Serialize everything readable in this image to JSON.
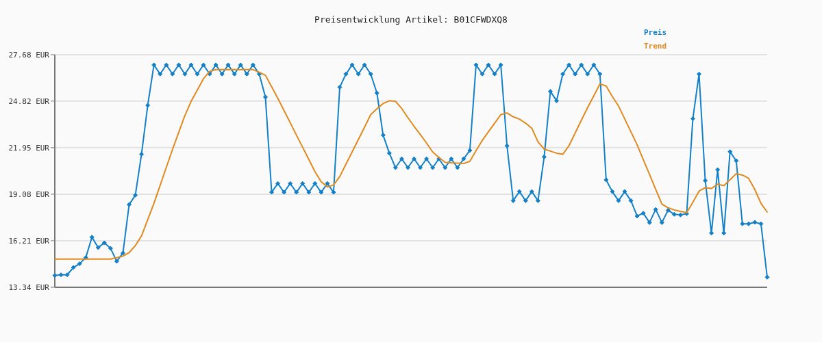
{
  "chart_data": {
    "type": "line",
    "title": "Preisentwicklung Artikel: B01CFWDXQ8",
    "categories": [
      null,
      null,
      null,
      null,
      null,
      null,
      null,
      null,
      null,
      null,
      null,
      null,
      null,
      null,
      null,
      null,
      null,
      null,
      null,
      null,
      null,
      null,
      null,
      null,
      null,
      null,
      null,
      null,
      null,
      null,
      null,
      null,
      null,
      null,
      null,
      null,
      null,
      null,
      null,
      null,
      null,
      null,
      null,
      null,
      null,
      null,
      null,
      null,
      null,
      null,
      null,
      null,
      null,
      null,
      null,
      null,
      null,
      null,
      null,
      null,
      null,
      null,
      null,
      null,
      null,
      null,
      null,
      null,
      null,
      null,
      null,
      null,
      null,
      null,
      null,
      null,
      null,
      null,
      null,
      null,
      null,
      null,
      null,
      null,
      null,
      null,
      null,
      null,
      null,
      null,
      null,
      null,
      null,
      null,
      null,
      null,
      null,
      null,
      null,
      null,
      null,
      null,
      null,
      null,
      null,
      null,
      null,
      null,
      null,
      null,
      null,
      null,
      null,
      null,
      null,
      null
    ],
    "ylim": [
      13.34,
      27.68
    ],
    "yticks": [
      {
        "value": 13.34,
        "label": "13.34 EUR"
      },
      {
        "value": 16.21,
        "label": "16.21 EUR"
      },
      {
        "value": 19.08,
        "label": "19.08 EUR"
      },
      {
        "value": 21.95,
        "label": "21.95 EUR"
      },
      {
        "value": 24.82,
        "label": "24.82 EUR"
      },
      {
        "value": 27.68,
        "label": "27.68 EUR"
      }
    ],
    "grid": "y",
    "series": [
      {
        "name": "Preis",
        "color": "#1380c8",
        "marker": "diamond",
        "values": [
          14.07,
          14.11,
          14.11,
          14.56,
          14.79,
          15.17,
          16.43,
          15.79,
          16.08,
          15.74,
          14.94,
          15.45,
          18.44,
          19.02,
          21.55,
          24.56,
          27.05,
          26.49,
          27.05,
          26.49,
          27.05,
          26.49,
          27.05,
          26.49,
          27.05,
          26.49,
          27.05,
          26.49,
          27.05,
          26.49,
          27.05,
          26.49,
          27.05,
          26.49,
          25.07,
          19.2,
          19.74,
          19.2,
          19.74,
          19.2,
          19.74,
          19.2,
          19.74,
          19.2,
          19.74,
          19.2,
          25.68,
          26.49,
          27.05,
          26.49,
          27.05,
          26.49,
          25.32,
          22.72,
          21.61,
          20.72,
          21.26,
          20.72,
          21.26,
          20.72,
          21.26,
          20.72,
          21.26,
          20.72,
          21.26,
          20.72,
          21.26,
          21.78,
          27.05,
          26.49,
          27.05,
          26.49,
          27.05,
          22.06,
          18.68,
          19.24,
          18.68,
          19.24,
          18.68,
          21.38,
          25.42,
          24.84,
          26.49,
          27.05,
          26.49,
          27.05,
          26.49,
          27.05,
          26.49,
          19.96,
          19.24,
          18.68,
          19.24,
          18.68,
          17.73,
          17.91,
          17.33,
          18.14,
          17.33,
          18.09,
          17.84,
          17.8,
          17.88,
          23.74,
          26.49,
          19.92,
          16.68,
          20.59,
          16.68,
          21.7,
          21.14,
          17.25,
          17.25,
          17.35,
          17.25,
          13.96
        ]
      },
      {
        "name": "Trend",
        "color": "#e08a1e",
        "marker": "none",
        "values": [
          15.08,
          15.08,
          15.08,
          15.08,
          15.08,
          15.08,
          15.08,
          15.08,
          15.08,
          15.08,
          15.17,
          15.26,
          15.48,
          15.91,
          16.51,
          17.51,
          18.51,
          19.62,
          20.73,
          21.84,
          22.89,
          23.93,
          24.8,
          25.5,
          26.2,
          26.65,
          26.76,
          26.76,
          26.76,
          26.76,
          26.76,
          26.76,
          26.76,
          26.6,
          26.41,
          25.71,
          24.99,
          24.24,
          23.49,
          22.73,
          21.98,
          21.23,
          20.47,
          19.85,
          19.53,
          19.65,
          20.17,
          20.93,
          21.69,
          22.45,
          23.21,
          23.99,
          24.35,
          24.67,
          24.84,
          24.81,
          24.36,
          23.8,
          23.26,
          22.76,
          22.24,
          21.68,
          21.34,
          21.05,
          21.02,
          21.0,
          20.97,
          21.11,
          21.76,
          22.39,
          22.93,
          23.46,
          23.99,
          24.09,
          23.85,
          23.71,
          23.46,
          23.15,
          22.31,
          21.86,
          21.74,
          21.61,
          21.54,
          22.07,
          22.85,
          23.64,
          24.41,
          25.14,
          25.88,
          25.75,
          25.11,
          24.52,
          23.72,
          22.93,
          22.13,
          21.21,
          20.3,
          19.38,
          18.47,
          18.24,
          18.11,
          18.02,
          17.94,
          18.58,
          19.27,
          19.48,
          19.43,
          19.7,
          19.6,
          19.97,
          20.34,
          20.26,
          20.06,
          19.37,
          18.51,
          17.98
        ]
      }
    ]
  }
}
